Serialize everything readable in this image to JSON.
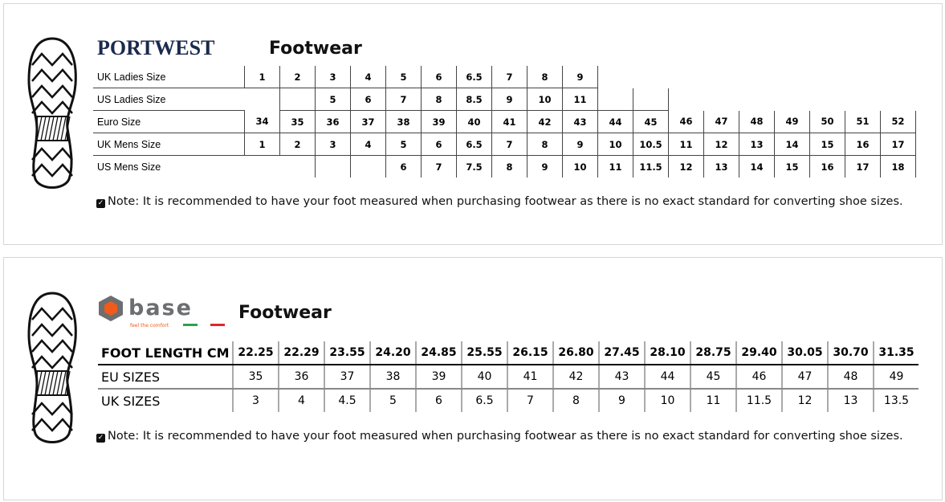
{
  "portwest": {
    "brand": "PORTWEST",
    "title": "Footwear",
    "rows": [
      {
        "label": "UK Ladies Size",
        "cells": [
          "1",
          "2",
          "3",
          "4",
          "5",
          "6",
          "6.5",
          "7",
          "8",
          "9",
          null,
          null,
          null,
          null,
          null,
          null,
          null,
          null,
          null
        ]
      },
      {
        "label": "US Ladies Size",
        "cells": [
          null,
          "",
          "5",
          "6",
          "7",
          "8",
          "8.5",
          "9",
          "10",
          "11",
          "",
          "",
          null,
          null,
          null,
          null,
          null,
          null,
          null
        ]
      },
      {
        "label": "Euro Size",
        "cells": [
          "34",
          "35",
          "36",
          "37",
          "38",
          "39",
          "40",
          "41",
          "42",
          "43",
          "44",
          "45",
          "46",
          "47",
          "48",
          "49",
          "50",
          "51",
          "52"
        ]
      },
      {
        "label": "UK Mens Size",
        "cells": [
          "1",
          "2",
          "3",
          "4",
          "5",
          "6",
          "6.5",
          "7",
          "8",
          "9",
          "10",
          "10.5",
          "11",
          "12",
          "13",
          "14",
          "15",
          "16",
          "17"
        ]
      },
      {
        "label": "US Mens Size",
        "cells": [
          null,
          null,
          "",
          "",
          "6",
          "7",
          "7.5",
          "8",
          "9",
          "10",
          "11",
          "11.5",
          "12",
          "13",
          "14",
          "15",
          "16",
          "17",
          "18"
        ]
      }
    ],
    "note": "Note: It is recommended to have your foot measured when purchasing footwear as there is no exact standard for converting shoe sizes."
  },
  "base": {
    "brand": "Base",
    "tagline": "feel the comfort",
    "title": "Footwear",
    "colors": {
      "orange": "#f05a1a",
      "grey": "#6d6e70",
      "green": "#2ca34a",
      "red": "#e0262d"
    },
    "rows": [
      {
        "label": "FOOT LENGTH CM",
        "cells": [
          "22.25",
          "22.29",
          "23.55",
          "24.20",
          "24.85",
          "25.55",
          "26.15",
          "26.80",
          "27.45",
          "28.10",
          "28.75",
          "29.40",
          "30.05",
          "30.70",
          "31.35"
        ]
      },
      {
        "label": "EU SIZES",
        "cells": [
          "35",
          "36",
          "37",
          "38",
          "39",
          "40",
          "41",
          "42",
          "43",
          "44",
          "45",
          "46",
          "47",
          "48",
          "49"
        ]
      },
      {
        "label": "UK SIZES",
        "cells": [
          "3",
          "4",
          "4.5",
          "5",
          "6",
          "6.5",
          "7",
          "8",
          "9",
          "10",
          "11",
          "11.5",
          "12",
          "13",
          "13.5"
        ]
      }
    ],
    "note": "Note: It is recommended to have your foot measured when purchasing footwear as there is no exact standard for converting shoe sizes."
  }
}
